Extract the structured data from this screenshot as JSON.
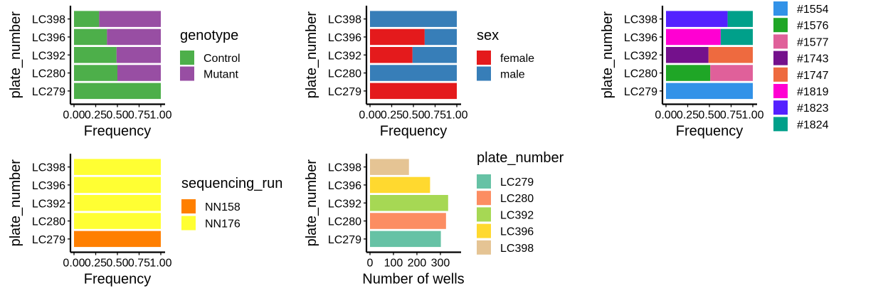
{
  "panels": [
    {
      "id": "genotype",
      "ylabel": "plate_number",
      "xlabel": "Frequency",
      "legend_title": "genotype"
    },
    {
      "id": "sex",
      "ylabel": "plate_number",
      "xlabel": "Frequency",
      "legend_title": "sex"
    },
    {
      "id": "animal",
      "ylabel": "plate_number",
      "xlabel": "Frequency",
      "legend_title": ""
    },
    {
      "id": "sequencing_run",
      "ylabel": "plate_number",
      "xlabel": "Frequency",
      "legend_title": "sequencing_run"
    },
    {
      "id": "wells",
      "ylabel": "plate_number",
      "xlabel": "Number of wells",
      "legend_title": "plate_number"
    }
  ],
  "chart_data": [
    {
      "type": "bar",
      "orientation": "horizontal",
      "stacked": true,
      "categories": [
        "LC279",
        "LC280",
        "LC392",
        "LC396",
        "LC398"
      ],
      "xlabel": "Frequency",
      "ylabel": "plate_number",
      "xlim": [
        0,
        1
      ],
      "xticks": [
        "0.00",
        "0.25",
        "0.50",
        "0.75",
        "1.00"
      ],
      "legend_title": "genotype",
      "legend_position": "right",
      "series": [
        {
          "name": "Control",
          "color": "#4DAF4A",
          "values": [
            1.0,
            0.5,
            0.49,
            0.38,
            0.29
          ]
        },
        {
          "name": "Mutant",
          "color": "#984EA3",
          "values": [
            0.0,
            0.5,
            0.51,
            0.62,
            0.71
          ]
        }
      ]
    },
    {
      "type": "bar",
      "orientation": "horizontal",
      "stacked": true,
      "categories": [
        "LC279",
        "LC280",
        "LC392",
        "LC396",
        "LC398"
      ],
      "xlabel": "Frequency",
      "ylabel": "plate_number",
      "xlim": [
        0,
        1
      ],
      "xticks": [
        "0.00",
        "0.25",
        "0.50",
        "0.75",
        "1.00"
      ],
      "legend_title": "sex",
      "legend_position": "right",
      "series": [
        {
          "name": "female",
          "color": "#E41A1C",
          "values": [
            1.0,
            0.0,
            0.49,
            0.63,
            0.0
          ]
        },
        {
          "name": "male",
          "color": "#377EB8",
          "values": [
            0.0,
            1.0,
            0.51,
            0.37,
            1.0
          ]
        }
      ]
    },
    {
      "type": "bar",
      "orientation": "horizontal",
      "stacked": true,
      "categories": [
        "LC279",
        "LC280",
        "LC392",
        "LC396",
        "LC398"
      ],
      "xlabel": "Frequency",
      "ylabel": "plate_number",
      "xlim": [
        0,
        1
      ],
      "xticks": [
        "0.00",
        "0.25",
        "0.50",
        "0.75",
        "1.00"
      ],
      "legend_title": "",
      "legend_position": "right",
      "series": [
        {
          "name": "#1554",
          "color": "#3292E8",
          "values": [
            1.0,
            0.0,
            0.0,
            0.0,
            0.0
          ]
        },
        {
          "name": "#1576",
          "color": "#1FA626",
          "values": [
            0.0,
            0.51,
            0.0,
            0.0,
            0.0
          ]
        },
        {
          "name": "#1577",
          "color": "#E0609A",
          "values": [
            0.0,
            0.49,
            0.0,
            0.0,
            0.0
          ]
        },
        {
          "name": "#1743",
          "color": "#74118C",
          "values": [
            0.0,
            0.0,
            0.49,
            0.0,
            0.0
          ]
        },
        {
          "name": "#1747",
          "color": "#EE6A3F",
          "values": [
            0.0,
            0.0,
            0.51,
            0.0,
            0.0
          ]
        },
        {
          "name": "#1819",
          "color": "#FF00D2",
          "values": [
            0.0,
            0.0,
            0.0,
            0.63,
            0.0
          ]
        },
        {
          "name": "#1823",
          "color": "#5421FF",
          "values": [
            0.0,
            0.0,
            0.0,
            0.0,
            0.71
          ]
        },
        {
          "name": "#1824",
          "color": "#00A08A",
          "values": [
            0.0,
            0.0,
            0.0,
            0.37,
            0.29
          ]
        }
      ]
    },
    {
      "type": "bar",
      "orientation": "horizontal",
      "stacked": true,
      "categories": [
        "LC279",
        "LC280",
        "LC392",
        "LC396",
        "LC398"
      ],
      "xlabel": "Frequency",
      "ylabel": "plate_number",
      "xlim": [
        0,
        1
      ],
      "xticks": [
        "0.00",
        "0.25",
        "0.50",
        "0.75",
        "1.00"
      ],
      "legend_title": "sequencing_run",
      "legend_position": "right",
      "series": [
        {
          "name": "NN158",
          "color": "#FF7F00",
          "values": [
            1.0,
            0.0,
            0.0,
            0.0,
            0.0
          ]
        },
        {
          "name": "NN176",
          "color": "#FFFF33",
          "values": [
            0.0,
            1.0,
            1.0,
            1.0,
            1.0
          ]
        }
      ]
    },
    {
      "type": "bar",
      "orientation": "horizontal",
      "stacked": false,
      "categories": [
        "LC279",
        "LC280",
        "LC392",
        "LC396",
        "LC398"
      ],
      "xlabel": "Number of wells",
      "ylabel": "plate_number",
      "xlim": [
        0,
        370
      ],
      "xticks": [
        "0",
        "100",
        "200",
        "300"
      ],
      "xtick_values": [
        0,
        100,
        200,
        300
      ],
      "legend_title": "plate_number",
      "legend_position": "right",
      "colors": [
        "#66C2A5",
        "#FC8D62",
        "#A6D854",
        "#FFD92F",
        "#E5C494"
      ],
      "values": [
        302,
        324,
        333,
        256,
        166
      ]
    }
  ]
}
